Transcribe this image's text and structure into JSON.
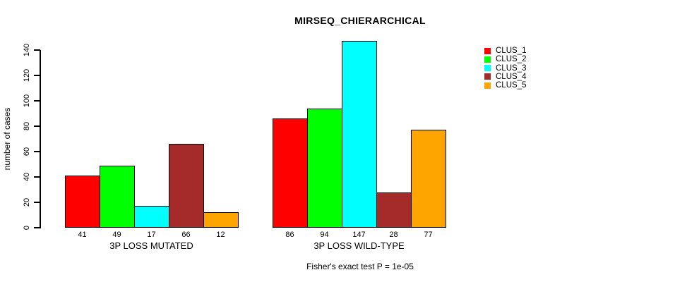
{
  "title": "MIRSEQ_CHIERARCHICAL",
  "footnote": "Fisher's exact test P = 1e-05",
  "chart_data": {
    "type": "bar",
    "title": "MIRSEQ_CHIERARCHICAL",
    "xlabel": "",
    "ylabel": "number of cases",
    "ylim": [
      0,
      140
    ],
    "yticks": [
      0,
      20,
      40,
      60,
      80,
      100,
      120,
      140
    ],
    "grid": false,
    "legend_position": "top-right",
    "bar_borders_color": "#000000",
    "background_color": "#ffffff",
    "categories": [
      "3P LOSS MUTATED",
      "3P LOSS WILD-TYPE"
    ],
    "series": [
      {
        "name": "CLUS_1",
        "color": "#ff0000",
        "values": [
          41,
          86
        ]
      },
      {
        "name": "CLUS_2",
        "color": "#00ff00",
        "values": [
          49,
          94
        ]
      },
      {
        "name": "CLUS_3",
        "color": "#00ffff",
        "values": [
          17,
          147
        ]
      },
      {
        "name": "CLUS_4",
        "color": "#a52a2a",
        "values": [
          66,
          28
        ]
      },
      {
        "name": "CLUS_5",
        "color": "#ffa500",
        "values": [
          12,
          77
        ]
      }
    ],
    "bar_value_labels": {
      "3P LOSS MUTATED": [
        41,
        49,
        17,
        66,
        12
      ],
      "3P LOSS WILD-TYPE": [
        86,
        94,
        147,
        28,
        77
      ]
    },
    "annotation": "Fisher's exact test P = 1e-05"
  }
}
